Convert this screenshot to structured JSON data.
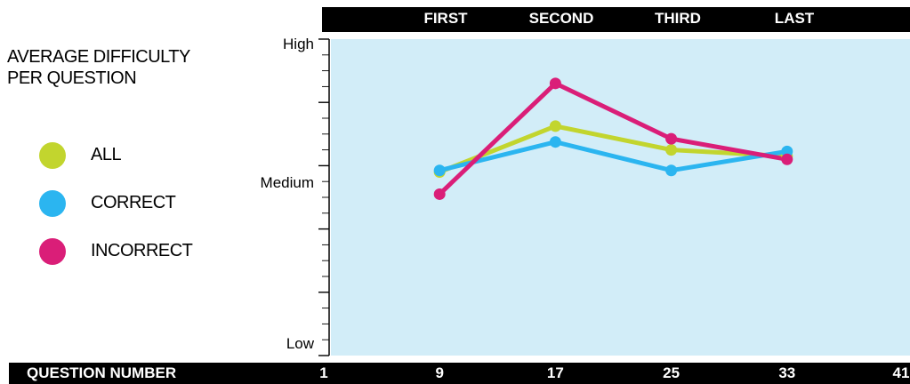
{
  "chart_data": {
    "type": "line",
    "title": "AVERAGE DIFFICULTY PER QUESTION",
    "top_labels": [
      "FIRST",
      "SECOND",
      "THIRD",
      "LAST"
    ],
    "xlabel": "QUESTION NUMBER",
    "x_ticks": [
      1,
      9,
      17,
      25,
      33,
      41
    ],
    "xlim": [
      1,
      41
    ],
    "y_tick_labels": [
      "High",
      "Medium",
      "Low"
    ],
    "ylim": [
      0,
      10
    ],
    "grid": false,
    "background": "#d2edf8",
    "x": [
      9,
      17,
      25,
      33
    ],
    "series": [
      {
        "name": "ALL",
        "color": "#c2d52e",
        "values": [
          5.8,
          7.25,
          6.5,
          6.3
        ]
      },
      {
        "name": "CORRECT",
        "color": "#2bb5f0",
        "values": [
          5.85,
          6.75,
          5.85,
          6.45
        ]
      },
      {
        "name": "INCORRECT",
        "color": "#da1e78",
        "values": [
          5.1,
          8.6,
          6.85,
          6.2
        ]
      }
    ]
  }
}
